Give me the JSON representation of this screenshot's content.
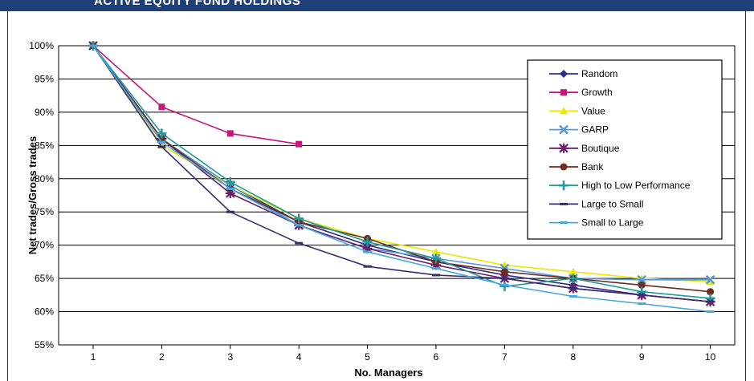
{
  "header": {
    "title": "ACTIVE EQUITY FUND HOLDINGS"
  },
  "chart_data": {
    "type": "line",
    "title": "",
    "xlabel": "No. Managers",
    "ylabel": "Net trades/Gross trades",
    "x": [
      1,
      2,
      3,
      4,
      5,
      6,
      7,
      8,
      9,
      10
    ],
    "ylim": [
      55,
      100
    ],
    "yticks": [
      "55%",
      "60%",
      "65%",
      "70%",
      "75%",
      "80%",
      "85%",
      "90%",
      "95%",
      "100%"
    ],
    "ytick_values": [
      55,
      60,
      65,
      70,
      75,
      80,
      85,
      90,
      95,
      100
    ],
    "grid": true,
    "legend_position": "top-right",
    "series": [
      {
        "name": "Random",
        "color": "#2b2d8c",
        "marker": "diamond",
        "values": [
          100,
          86,
          79,
          73.5,
          70,
          67.5,
          65.5,
          64,
          62.5,
          61.5
        ]
      },
      {
        "name": "Growth",
        "color": "#c8157e",
        "marker": "square",
        "values": [
          100,
          90.8,
          86.8,
          85.2,
          null,
          null,
          null,
          null,
          null,
          null
        ]
      },
      {
        "name": "Value",
        "color": "#e8e800",
        "marker": "triangle",
        "values": [
          100,
          85,
          79,
          74,
          71,
          69,
          67,
          66,
          65,
          64.5
        ]
      },
      {
        "name": "GARP",
        "color": "#5599dd",
        "marker": "x",
        "values": [
          100,
          86,
          79,
          73,
          69.5,
          68,
          66.5,
          65,
          64.8,
          64.8
        ]
      },
      {
        "name": "Boutique",
        "color": "#6a1f6e",
        "marker": "star",
        "values": [
          100,
          86,
          77.8,
          73,
          69.5,
          67,
          65,
          63.5,
          62.5,
          61.5
        ]
      },
      {
        "name": "Bank",
        "color": "#6e2b1f",
        "marker": "circle",
        "values": [
          100,
          86,
          78.5,
          73.5,
          71,
          67.5,
          66,
          65,
          64,
          63
        ]
      },
      {
        "name": "High to Low Performance",
        "color": "#1f9a99",
        "marker": "plus",
        "values": [
          100,
          86.8,
          79.5,
          74,
          70.5,
          68,
          63.8,
          65,
          63,
          62
        ]
      },
      {
        "name": "Large to Small",
        "color": "#3a2b6e",
        "marker": "dash",
        "values": [
          100,
          84.8,
          75,
          70.3,
          66.8,
          65.5,
          65,
          63.5,
          62.5,
          61.5
        ]
      },
      {
        "name": "Small to Large",
        "color": "#44a8dd",
        "marker": "dash",
        "values": [
          100,
          85.5,
          78.5,
          73,
          69,
          66.5,
          64,
          62.3,
          61.2,
          60
        ]
      }
    ]
  }
}
